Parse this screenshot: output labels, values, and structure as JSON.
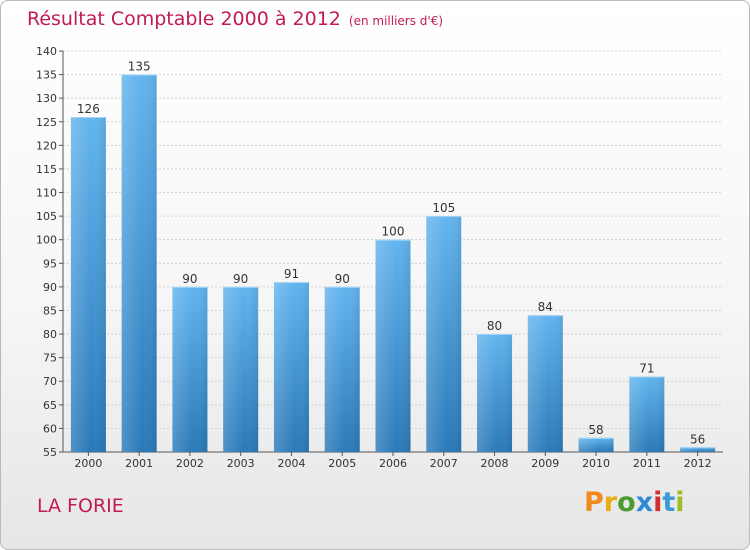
{
  "title": "Résultat Comptable 2000 à 2012",
  "unit": "(en milliers d'€)",
  "location": "LA FORIE",
  "logo": {
    "letters": [
      "P",
      "r",
      "o",
      "x",
      "i",
      "t",
      "i"
    ],
    "colors": [
      "#f08a1c",
      "#e9ad14",
      "#4b9c2e",
      "#2f8ad6",
      "#d12e2e",
      "#3a9ad9",
      "#9bbf23"
    ]
  },
  "colors": {
    "bar_top": "#62b4ee",
    "bar_bottom": "#2a79b8",
    "title": "#c21a55"
  },
  "chart_data": {
    "type": "bar",
    "title": "Résultat Comptable 2000 à 2012",
    "xlabel": "",
    "ylabel": "(en milliers d'€)",
    "categories": [
      "2000",
      "2001",
      "2002",
      "2003",
      "2004",
      "2005",
      "2006",
      "2007",
      "2008",
      "2009",
      "2010",
      "2011",
      "2012"
    ],
    "values": [
      126,
      135,
      90,
      90,
      91,
      90,
      100,
      105,
      80,
      84,
      58,
      71,
      56
    ],
    "ylim": [
      55,
      140
    ],
    "yticks": [
      55,
      60,
      65,
      70,
      75,
      80,
      85,
      90,
      95,
      100,
      105,
      110,
      115,
      120,
      125,
      130,
      135,
      140
    ],
    "grid": true
  }
}
